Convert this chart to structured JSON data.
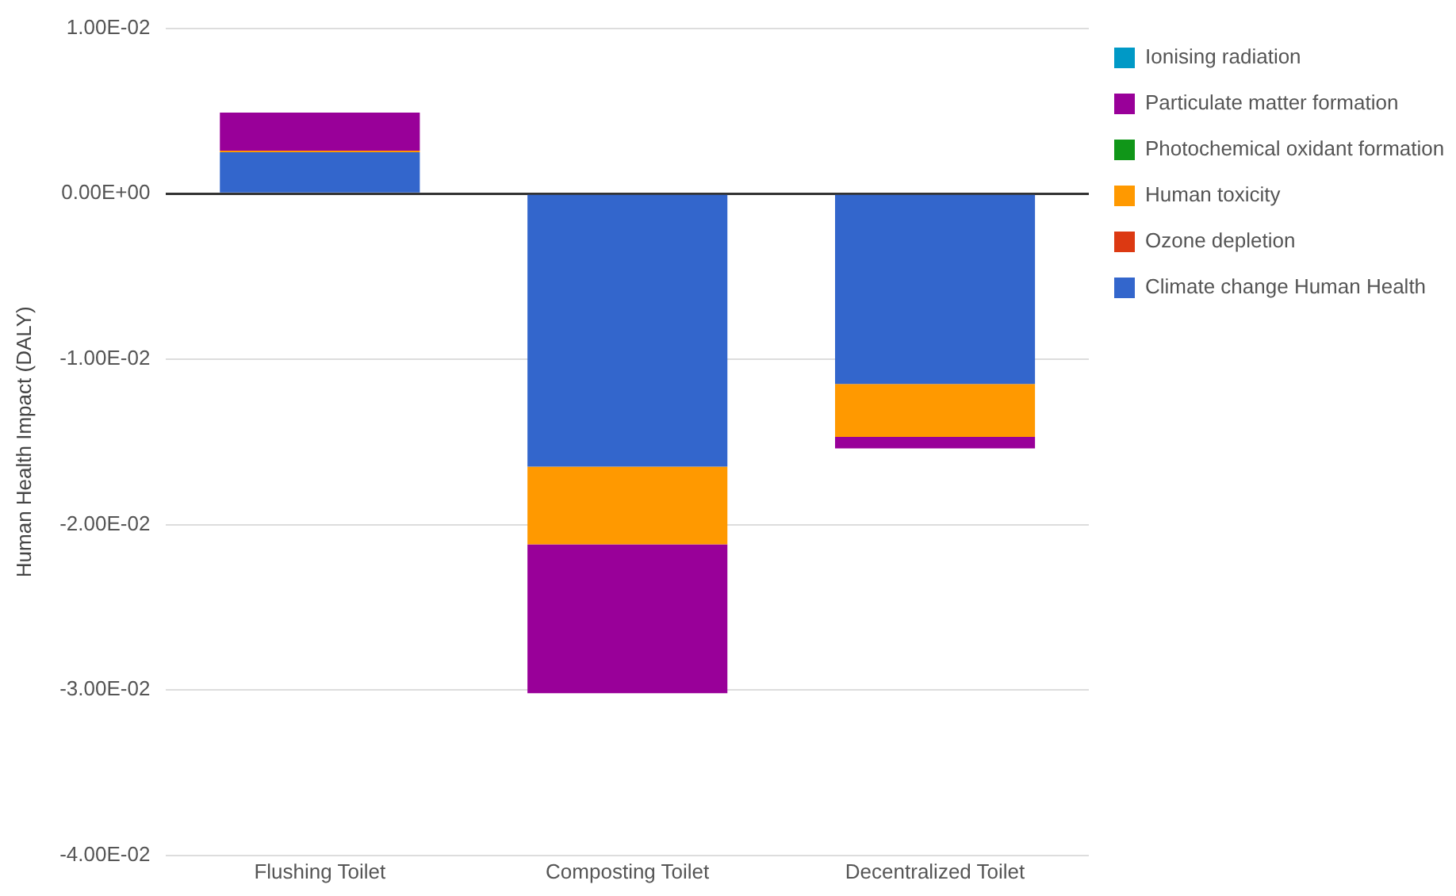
{
  "chart_data": {
    "type": "bar",
    "stacked": true,
    "ylabel": "Human Health Impact (DALY)",
    "categories": [
      "Flushing Toilet",
      "Composting Toilet",
      "Decentralized Toilet"
    ],
    "series": [
      {
        "name": "Climate change Human Health",
        "color": "#3366cc",
        "values": [
          0.0025,
          -0.0165,
          -0.0115
        ]
      },
      {
        "name": "Ozone depletion",
        "color": "#dc3912",
        "values": [
          0,
          0,
          0
        ]
      },
      {
        "name": "Human toxicity",
        "color": "#ff9900",
        "values": [
          0.0001,
          -0.0047,
          -0.0032
        ]
      },
      {
        "name": "Photochemical oxidant formation",
        "color": "#109618",
        "values": [
          0,
          0,
          0
        ]
      },
      {
        "name": "Particulate matter formation",
        "color": "#990099",
        "values": [
          0.0023,
          -0.009,
          -0.0007
        ]
      },
      {
        "name": "Ionising radiation",
        "color": "#0099c6",
        "values": [
          0,
          0,
          0
        ]
      }
    ],
    "ylim": [
      -0.04,
      0.01
    ],
    "yticks": [
      {
        "value": -0.04,
        "label": "-4.00E-02"
      },
      {
        "value": -0.03,
        "label": "-3.00E-02"
      },
      {
        "value": -0.02,
        "label": "-2.00E-02"
      },
      {
        "value": -0.01,
        "label": "-1.00E-02"
      },
      {
        "value": 0,
        "label": "0.00E+00"
      },
      {
        "value": 0.01,
        "label": "1.00E-02"
      }
    ],
    "grid": "y",
    "legend": "right"
  }
}
